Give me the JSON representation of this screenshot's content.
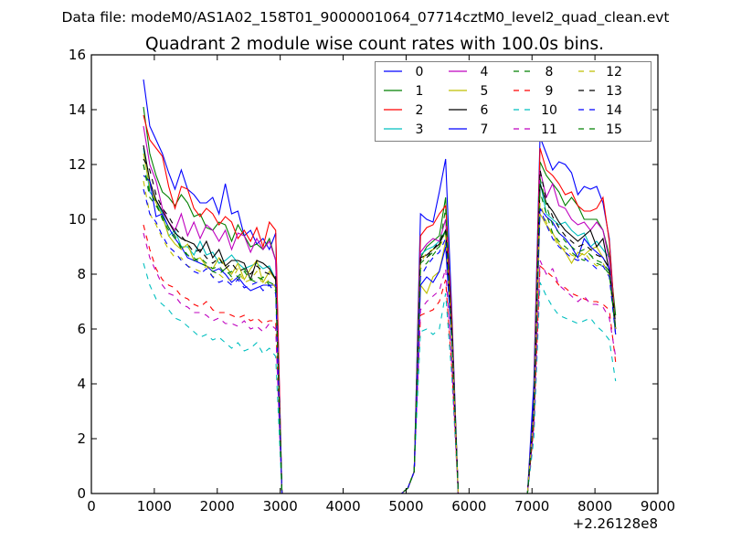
{
  "chart_data": {
    "type": "line",
    "suptitle": "Data file: modeM0/AS1A02_158T01_9000001064_07714cztM0_level2_quad_clean.evt",
    "title": "Quadrant 2 module wise count rates with 100.0s bins.",
    "xlabel": "",
    "ylabel": "",
    "x_offset_label": "+2.26128e8",
    "xlim": [
      0,
      9000
    ],
    "ylim": [
      0,
      16
    ],
    "xticks": [
      0,
      1000,
      2000,
      3000,
      4000,
      5000,
      6000,
      7000,
      8000,
      9000
    ],
    "xtick_labels": [
      "0",
      "1000",
      "2000",
      "3000",
      "4000",
      "5000",
      "6000",
      "7000",
      "8000",
      "9000"
    ],
    "yticks": [
      0,
      2,
      4,
      6,
      8,
      10,
      12,
      14,
      16
    ],
    "ytick_labels": [
      "0",
      "2",
      "4",
      "6",
      "8",
      "10",
      "12",
      "14",
      "16"
    ],
    "grid": false,
    "legend_placement": "top-right",
    "legend_columns": 4,
    "x": [
      828,
      928,
      1028,
      1128,
      1228,
      1328,
      1428,
      1528,
      1628,
      1728,
      1828,
      1928,
      2028,
      2128,
      2228,
      2328,
      2428,
      2528,
      2628,
      2728,
      2828,
      2928,
      3028,
      4928,
      5028,
      5128,
      5228,
      5328,
      5428,
      5528,
      5628,
      5728,
      5828,
      6928,
      7028,
      7128,
      7228,
      7328,
      7428,
      7528,
      7628,
      7728,
      7828,
      7928,
      8028,
      8128,
      8228,
      8328
    ],
    "series": [
      {
        "name": "0",
        "color": "#0000ff",
        "style": "solid",
        "values": [
          15.1,
          13.4,
          12.9,
          12.4,
          11.7,
          11.1,
          11.8,
          11.1,
          10.9,
          10.6,
          10.6,
          10.8,
          10.2,
          11.3,
          10.2,
          10.3,
          9.4,
          9.6,
          9.1,
          9.3,
          8.9,
          9.5,
          0,
          0,
          0.2,
          0.8,
          10.2,
          10.0,
          9.9,
          11.0,
          12.2,
          6.5,
          0,
          0,
          4.0,
          13.0,
          12.4,
          11.8,
          12.1,
          12.0,
          11.7,
          10.9,
          11.2,
          11.1,
          11.2,
          10.6,
          9.3,
          6.0
        ]
      },
      {
        "name": "1",
        "color": "#008000",
        "style": "solid",
        "values": [
          14.1,
          12.4,
          11.6,
          11.0,
          10.8,
          10.5,
          10.9,
          10.6,
          10.1,
          10.2,
          9.7,
          9.6,
          9.9,
          9.8,
          9.2,
          9.8,
          9.4,
          9.0,
          9.1,
          8.9,
          9.3,
          8.5,
          0,
          0,
          0.2,
          0.8,
          8.6,
          9.0,
          9.2,
          9.4,
          10.8,
          6.0,
          0,
          0,
          3.0,
          12.1,
          11.6,
          11.3,
          11.0,
          10.5,
          10.8,
          10.5,
          10.0,
          10.0,
          10.0,
          9.6,
          8.7,
          6.5
        ]
      },
      {
        "name": "2",
        "color": "#ff0000",
        "style": "solid",
        "values": [
          13.8,
          12.9,
          12.6,
          12.3,
          11.2,
          10.4,
          11.2,
          11.1,
          10.4,
          10.1,
          10.4,
          10.2,
          9.8,
          10.1,
          9.9,
          9.3,
          9.6,
          9.2,
          9.7,
          9.0,
          9.9,
          9.6,
          0,
          0,
          0.2,
          0.8,
          9.4,
          9.7,
          9.8,
          10.2,
          10.5,
          6.2,
          0,
          0,
          3.5,
          12.6,
          11.8,
          11.6,
          11.3,
          10.9,
          11.0,
          10.5,
          10.3,
          10.3,
          10.4,
          10.8,
          9.2,
          6.0
        ]
      },
      {
        "name": "3",
        "color": "#00bfbf",
        "style": "solid",
        "values": [
          12.6,
          11.0,
          10.7,
          10.2,
          9.4,
          9.6,
          9.0,
          9.0,
          8.7,
          9.2,
          8.7,
          8.8,
          8.4,
          8.5,
          8.7,
          8.4,
          8.2,
          8.3,
          8.4,
          8.2,
          8.3,
          7.8,
          0,
          0,
          0.2,
          0.8,
          8.7,
          8.9,
          9.0,
          9.2,
          9.6,
          5.8,
          0,
          0,
          3.0,
          11.4,
          10.2,
          10.0,
          9.8,
          9.9,
          9.6,
          9.4,
          9.5,
          9.0,
          9.2,
          8.9,
          8.6,
          6.0
        ]
      },
      {
        "name": "4",
        "color": "#bf00bf",
        "style": "solid",
        "values": [
          13.4,
          12.0,
          11.4,
          10.4,
          9.9,
          9.6,
          10.2,
          9.4,
          9.9,
          9.3,
          9.8,
          9.6,
          9.2,
          9.6,
          8.9,
          9.5,
          9.4,
          8.8,
          9.3,
          8.9,
          9.2,
          8.5,
          0,
          0,
          0.2,
          0.8,
          8.8,
          9.1,
          9.3,
          9.2,
          10.0,
          5.8,
          0,
          0,
          3.0,
          11.8,
          10.8,
          11.3,
          10.5,
          10.4,
          10.0,
          9.8,
          9.9,
          9.6,
          9.9,
          9.6,
          8.5,
          6.0
        ]
      },
      {
        "name": "5",
        "color": "#bfbf00",
        "style": "solid",
        "values": [
          12.4,
          11.2,
          10.6,
          10.1,
          9.4,
          9.1,
          8.9,
          9.1,
          8.5,
          8.6,
          8.3,
          8.2,
          8.6,
          8.3,
          8.0,
          8.4,
          7.8,
          8.2,
          8.5,
          7.7,
          8.1,
          7.8,
          0,
          0,
          0.2,
          0.8,
          7.6,
          7.3,
          7.9,
          8.1,
          9.2,
          5.5,
          0,
          0,
          2.5,
          10.2,
          9.8,
          9.5,
          9.1,
          8.8,
          8.4,
          8.8,
          8.7,
          8.9,
          9.0,
          8.6,
          8.2,
          5.8
        ]
      },
      {
        "name": "6",
        "color": "#000000",
        "style": "solid",
        "values": [
          12.7,
          11.4,
          10.7,
          10.3,
          9.9,
          9.5,
          9.3,
          9.2,
          9.1,
          8.8,
          9.2,
          8.6,
          8.9,
          8.3,
          8.5,
          8.5,
          8.4,
          7.8,
          8.5,
          8.4,
          8.2,
          7.8,
          0,
          0,
          0.2,
          0.8,
          8.6,
          8.7,
          8.9,
          9.1,
          9.6,
          5.8,
          0,
          0,
          2.5,
          11.3,
          10.6,
          10.3,
          9.9,
          9.6,
          9.4,
          9.2,
          9.4,
          9.6,
          9.0,
          9.3,
          8.1,
          6.0
        ]
      },
      {
        "name": "7",
        "color": "#0000ff",
        "style": "solid",
        "values": [
          11.6,
          11.4,
          10.1,
          10.2,
          9.7,
          9.3,
          9.0,
          8.6,
          8.5,
          8.4,
          8.3,
          8.1,
          8.2,
          8.0,
          7.7,
          7.9,
          7.6,
          7.4,
          7.5,
          7.6,
          7.6,
          7.6,
          0,
          0,
          0.2,
          0.8,
          7.6,
          7.9,
          7.7,
          8.1,
          9.0,
          5.4,
          0,
          0,
          3.5,
          10.4,
          10.1,
          9.9,
          9.5,
          9.3,
          9.0,
          8.6,
          9.3,
          9.0,
          8.8,
          8.6,
          8.2,
          5.8
        ]
      },
      {
        "name": "8",
        "color": "#008000",
        "style": "dashed",
        "values": [
          12.0,
          10.8,
          10.5,
          10.1,
          9.7,
          9.4,
          8.9,
          8.7,
          8.6,
          8.4,
          8.3,
          8.1,
          8.0,
          8.2,
          7.9,
          7.8,
          8.1,
          7.8,
          7.7,
          7.9,
          7.6,
          7.4,
          0,
          0,
          0.2,
          0.8,
          8.2,
          8.4,
          8.7,
          9.0,
          9.6,
          5.6,
          0,
          0,
          3.0,
          11.0,
          10.2,
          9.5,
          9.2,
          9.0,
          8.8,
          8.6,
          8.5,
          8.7,
          8.4,
          8.3,
          8.0,
          6.0
        ]
      },
      {
        "name": "9",
        "color": "#ff0000",
        "style": "dashed",
        "values": [
          9.8,
          8.9,
          8.2,
          7.8,
          7.6,
          7.5,
          7.2,
          7.1,
          6.9,
          6.8,
          7.0,
          6.7,
          6.6,
          6.6,
          6.5,
          6.4,
          6.5,
          6.3,
          6.4,
          6.2,
          6.3,
          6.3,
          0,
          0,
          0.2,
          0.8,
          6.5,
          6.6,
          6.7,
          7.0,
          7.8,
          4.5,
          0,
          0,
          2.5,
          8.3,
          8.1,
          7.9,
          7.6,
          7.5,
          7.3,
          7.2,
          7.1,
          7.0,
          7.0,
          6.9,
          6.7,
          4.8
        ]
      },
      {
        "name": "10",
        "color": "#00bfbf",
        "style": "dashed",
        "values": [
          8.4,
          7.6,
          7.1,
          6.9,
          6.7,
          6.4,
          6.3,
          6.1,
          5.9,
          5.7,
          5.8,
          5.6,
          5.7,
          5.5,
          5.3,
          5.5,
          5.2,
          5.3,
          5.5,
          5.1,
          5.3,
          5.0,
          0,
          0,
          0.2,
          0.8,
          5.9,
          6.0,
          5.8,
          6.0,
          7.3,
          4.2,
          0,
          0,
          2.0,
          7.7,
          7.2,
          6.8,
          6.5,
          6.4,
          6.3,
          6.2,
          6.3,
          6.4,
          6.1,
          5.9,
          5.6,
          4.1
        ]
      },
      {
        "name": "11",
        "color": "#bf00bf",
        "style": "dashed",
        "values": [
          9.5,
          8.6,
          8.1,
          7.6,
          7.3,
          7.2,
          6.9,
          6.8,
          6.6,
          6.6,
          6.5,
          6.3,
          6.4,
          6.2,
          6.2,
          6.1,
          6.3,
          6.0,
          6.1,
          5.9,
          6.2,
          6.0,
          0,
          0,
          0.2,
          0.8,
          6.7,
          7.0,
          7.2,
          7.4,
          8.2,
          4.6,
          0,
          0,
          2.5,
          8.5,
          8.0,
          8.2,
          7.6,
          7.4,
          7.2,
          7.0,
          7.2,
          6.9,
          6.9,
          6.8,
          6.4,
          5.0
        ]
      },
      {
        "name": "12",
        "color": "#bfbf00",
        "style": "dashed",
        "values": [
          11.4,
          10.2,
          9.8,
          9.3,
          8.9,
          8.6,
          8.6,
          8.3,
          8.2,
          8.1,
          8.3,
          7.9,
          8.0,
          7.8,
          7.8,
          8.2,
          7.7,
          7.8,
          8.1,
          7.6,
          7.8,
          7.5,
          0,
          0,
          0.2,
          0.8,
          8.4,
          8.8,
          8.9,
          9.0,
          9.4,
          5.6,
          0,
          0,
          3.0,
          10.6,
          9.9,
          9.4,
          9.0,
          8.9,
          8.7,
          8.6,
          8.8,
          8.5,
          8.3,
          8.4,
          8.0,
          6.0
        ]
      },
      {
        "name": "13",
        "color": "#000000",
        "style": "dashed",
        "values": [
          12.2,
          11.8,
          10.9,
          10.4,
          10.1,
          9.7,
          9.4,
          9.1,
          8.8,
          8.9,
          8.6,
          8.4,
          8.6,
          8.2,
          8.4,
          8.1,
          8.2,
          8.0,
          8.3,
          8.1,
          8.0,
          7.9,
          0,
          0,
          0.2,
          0.8,
          8.5,
          8.6,
          8.9,
          9.2,
          9.6,
          5.7,
          0,
          0,
          3.0,
          11.8,
          10.7,
          10.1,
          9.7,
          9.4,
          9.2,
          9.0,
          9.1,
          8.9,
          8.7,
          8.6,
          8.2,
          6.2
        ]
      },
      {
        "name": "14",
        "color": "#0000ff",
        "style": "dashed",
        "values": [
          11.1,
          10.2,
          9.9,
          9.4,
          9.0,
          8.8,
          8.5,
          8.3,
          8.1,
          8.0,
          8.2,
          7.9,
          7.7,
          7.8,
          7.6,
          7.8,
          7.5,
          7.6,
          7.7,
          7.4,
          7.6,
          7.3,
          0,
          0,
          0.2,
          0.8,
          7.9,
          8.3,
          8.6,
          8.8,
          9.3,
          5.5,
          0,
          0,
          3.0,
          10.4,
          9.8,
          9.3,
          9.0,
          8.8,
          8.6,
          8.5,
          8.6,
          8.4,
          8.2,
          8.3,
          7.9,
          5.8
        ]
      },
      {
        "name": "15",
        "color": "#008000",
        "style": "dashed",
        "values": [
          12.0,
          11.0,
          10.6,
          10.0,
          9.6,
          9.3,
          9.0,
          8.7,
          8.5,
          8.6,
          8.4,
          8.2,
          8.3,
          8.0,
          8.1,
          7.9,
          8.2,
          7.8,
          7.9,
          7.8,
          7.7,
          7.6,
          0,
          0,
          0.2,
          0.8,
          8.4,
          8.6,
          8.8,
          9.0,
          10.4,
          5.6,
          0,
          0,
          3.0,
          11.5,
          10.5,
          9.8,
          9.5,
          9.2,
          9.0,
          8.8,
          8.9,
          8.7,
          8.5,
          8.4,
          8.1,
          6.0
        ]
      }
    ]
  }
}
